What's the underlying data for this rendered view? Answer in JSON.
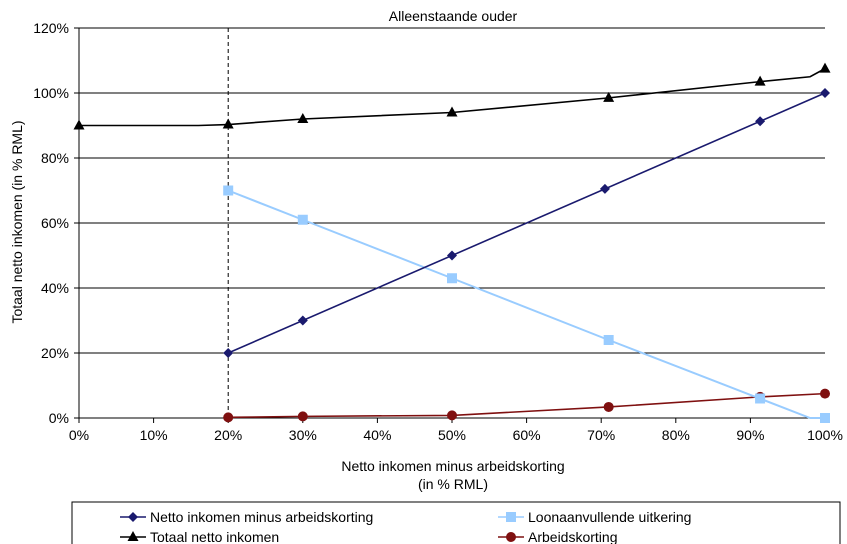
{
  "chart_data": {
    "type": "line",
    "title": "",
    "subtitle": "Alleenstaande ouder",
    "xlabel_line1": "Netto inkomen minus arbeidskorting",
    "xlabel_line2": "(in % RML)",
    "ylabel": "Totaal netto inkomen  (in % RML)",
    "xlim": [
      0,
      100
    ],
    "ylim": [
      0,
      120
    ],
    "x_ticks": [
      "0%",
      "10%",
      "20%",
      "30%",
      "40%",
      "50%",
      "60%",
      "70%",
      "80%",
      "90%",
      "100%"
    ],
    "y_ticks": [
      "0%",
      "20%",
      "40%",
      "60%",
      "80%",
      "100%",
      "120%"
    ],
    "grid": "horizontal",
    "reference_line_x": 20,
    "legend_position": "bottom",
    "series": [
      {
        "name": "Netto inkomen minus arbeidskorting",
        "color": "#1a1a6e",
        "marker": "diamond",
        "line": [
          [
            20,
            20
          ],
          [
            100,
            100
          ]
        ],
        "points": [
          [
            20,
            20
          ],
          [
            30,
            30
          ],
          [
            50,
            50
          ],
          [
            70.5,
            70.5
          ],
          [
            91.3,
            91.3
          ],
          [
            100,
            100
          ]
        ]
      },
      {
        "name": "Loonaanvullende  uitkering",
        "color": "#99ccff",
        "marker": "square",
        "line": [
          [
            20,
            70
          ],
          [
            30,
            61
          ],
          [
            50,
            43
          ],
          [
            71,
            24
          ],
          [
            98,
            0
          ],
          [
            100,
            0
          ]
        ],
        "points": [
          [
            20,
            70
          ],
          [
            30,
            61
          ],
          [
            50,
            43
          ],
          [
            71,
            24
          ],
          [
            91.3,
            6
          ],
          [
            100,
            0
          ]
        ]
      },
      {
        "name": "Totaal netto inkomen",
        "color": "#000000",
        "marker": "triangle",
        "line": [
          [
            0,
            90
          ],
          [
            16,
            90
          ],
          [
            20,
            90.3
          ],
          [
            30,
            92
          ],
          [
            50,
            94
          ],
          [
            71,
            98.5
          ],
          [
            91.3,
            103.5
          ],
          [
            98,
            105
          ],
          [
            100,
            107.5
          ]
        ],
        "points": [
          [
            0,
            90
          ],
          [
            20,
            90.3
          ],
          [
            30,
            92
          ],
          [
            50,
            94
          ],
          [
            71,
            98.5
          ],
          [
            91.3,
            103.5
          ],
          [
            100,
            107.5
          ]
        ]
      },
      {
        "name": "Arbeidskorting",
        "color": "#7f1010",
        "marker": "circle",
        "line": [
          [
            20,
            0.2
          ],
          [
            30,
            0.5
          ],
          [
            50,
            0.8
          ],
          [
            71,
            3.4
          ],
          [
            91.3,
            6.5
          ],
          [
            100,
            7.5
          ]
        ],
        "points": [
          [
            20,
            0.2
          ],
          [
            30,
            0.5
          ],
          [
            50,
            0.8
          ],
          [
            71,
            3.4
          ],
          [
            91.3,
            6.5
          ],
          [
            100,
            7.5
          ]
        ]
      }
    ]
  }
}
